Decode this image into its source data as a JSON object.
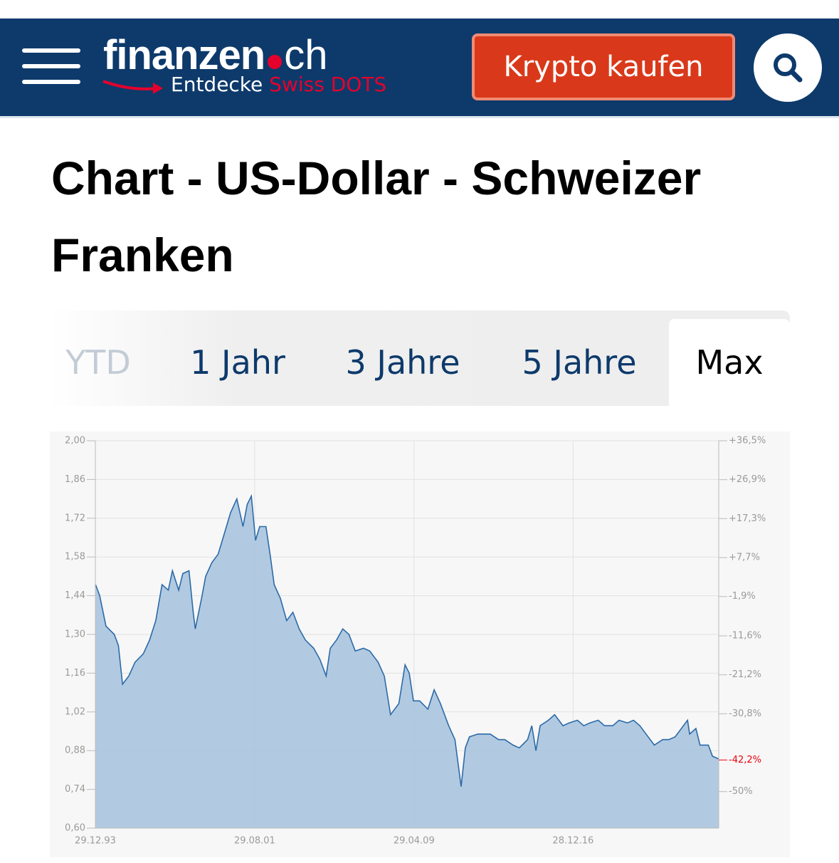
{
  "header": {
    "logo_main": "finanzen",
    "logo_suffix": "ch",
    "tagline": "Entdecke",
    "tagline_highlight": "Swiss DOTS",
    "cta": "Krypto kaufen"
  },
  "title": "Chart - US-Dollar - Schweizer Franken",
  "tabs": {
    "items": [
      "YTD",
      "1 Jahr",
      "3 Jahre",
      "5 Jahre",
      "Max"
    ],
    "active": 4
  },
  "chart_data": {
    "type": "area",
    "color": "#2c6aa8",
    "fill": "#a9c4de",
    "grid": true,
    "x": [
      1994.0,
      1994.2,
      1994.5,
      1994.9,
      1995.1,
      1995.3,
      1995.6,
      1995.9,
      1996.3,
      1996.6,
      1996.9,
      1997.2,
      1997.5,
      1997.7,
      1998.0,
      1998.2,
      1998.5,
      1998.7,
      1998.8,
      1999.1,
      1999.3,
      1999.6,
      1999.9,
      2000.1,
      2000.3,
      2000.5,
      2000.8,
      2001.1,
      2001.3,
      2001.5,
      2001.7,
      2001.9,
      2002.2,
      2002.4,
      2002.6,
      2002.9,
      2003.2,
      2003.5,
      2003.8,
      2004.1,
      2004.5,
      2004.8,
      2005.1,
      2005.3,
      2005.6,
      2005.9,
      2006.2,
      2006.5,
      2006.9,
      2007.2,
      2007.6,
      2007.9,
      2008.2,
      2008.6,
      2008.9,
      2009.1,
      2009.3,
      2009.6,
      2010.0,
      2010.3,
      2010.6,
      2011.0,
      2011.3,
      2011.6,
      2011.8,
      2012.0,
      2012.4,
      2012.7,
      2013.0,
      2013.4,
      2013.7,
      2014.1,
      2014.4,
      2014.8,
      2015.0,
      2015.2,
      2015.4,
      2015.8,
      2016.1,
      2016.5,
      2016.8,
      2017.2,
      2017.5,
      2017.8,
      2018.2,
      2018.5,
      2018.9,
      2019.2,
      2019.6,
      2019.9,
      2020.2,
      2020.6,
      2020.9,
      2021.3,
      2021.6,
      2021.9,
      2022.3,
      2022.5,
      2022.6,
      2022.9,
      2023.1,
      2023.5,
      2023.7,
      2024.0
    ],
    "values": [
      1.48,
      1.44,
      1.33,
      1.3,
      1.26,
      1.12,
      1.15,
      1.2,
      1.23,
      1.28,
      1.35,
      1.48,
      1.46,
      1.53,
      1.46,
      1.52,
      1.53,
      1.38,
      1.32,
      1.43,
      1.51,
      1.56,
      1.59,
      1.64,
      1.69,
      1.74,
      1.79,
      1.69,
      1.77,
      1.8,
      1.64,
      1.69,
      1.69,
      1.59,
      1.48,
      1.43,
      1.35,
      1.38,
      1.32,
      1.28,
      1.25,
      1.21,
      1.15,
      1.25,
      1.28,
      1.32,
      1.3,
      1.24,
      1.25,
      1.24,
      1.2,
      1.15,
      1.01,
      1.05,
      1.19,
      1.16,
      1.06,
      1.06,
      1.03,
      1.1,
      1.05,
      0.97,
      0.92,
      0.75,
      0.89,
      0.93,
      0.94,
      0.94,
      0.94,
      0.92,
      0.92,
      0.9,
      0.89,
      0.92,
      0.97,
      0.88,
      0.97,
      0.99,
      1.01,
      0.97,
      0.98,
      0.99,
      0.97,
      0.98,
      0.99,
      0.97,
      0.97,
      0.99,
      0.98,
      0.99,
      0.97,
      0.93,
      0.9,
      0.92,
      0.92,
      0.93,
      0.97,
      0.99,
      0.94,
      0.96,
      0.9,
      0.9,
      0.86,
      0.85
    ],
    "xlim": [
      1993.99,
      2024.0
    ],
    "xticks": [
      {
        "value": 1993.99,
        "label": "29.12.93"
      },
      {
        "value": 2001.66,
        "label": "29.08.01"
      },
      {
        "value": 2009.33,
        "label": "29.04.09"
      },
      {
        "value": 2016.99,
        "label": "28.12.16"
      }
    ],
    "ylim": [
      0.6,
      2.0
    ],
    "yticks": [
      {
        "value": 2.0,
        "label": "2,00"
      },
      {
        "value": 1.86,
        "label": "1,86"
      },
      {
        "value": 1.72,
        "label": "1,72"
      },
      {
        "value": 1.58,
        "label": "1,58"
      },
      {
        "value": 1.44,
        "label": "1,44"
      },
      {
        "value": 1.3,
        "label": "1,30"
      },
      {
        "value": 1.16,
        "label": "1,16"
      },
      {
        "value": 1.02,
        "label": "1,02"
      },
      {
        "value": 0.88,
        "label": "0,88"
      },
      {
        "value": 0.74,
        "label": "0,74"
      },
      {
        "value": 0.6,
        "label": "0,60"
      }
    ],
    "y2lim": [
      -59.0,
      36.5
    ],
    "y2ticks": [
      {
        "value": 36.5,
        "label": "+36,5%"
      },
      {
        "value": 26.9,
        "label": "+26,9%"
      },
      {
        "value": 17.3,
        "label": "+17,3%"
      },
      {
        "value": 7.7,
        "label": "+7,7%"
      },
      {
        "value": -1.9,
        "label": "-1,9%"
      },
      {
        "value": -11.6,
        "label": "-11,6%"
      },
      {
        "value": -21.2,
        "label": "-21,2%"
      },
      {
        "value": -30.8,
        "label": "-30,8%"
      },
      {
        "value": -50,
        "label": "-50%"
      }
    ],
    "y2_annotation": {
      "value": -42.2,
      "label": "-42,2%",
      "color": "#e8000b"
    }
  }
}
